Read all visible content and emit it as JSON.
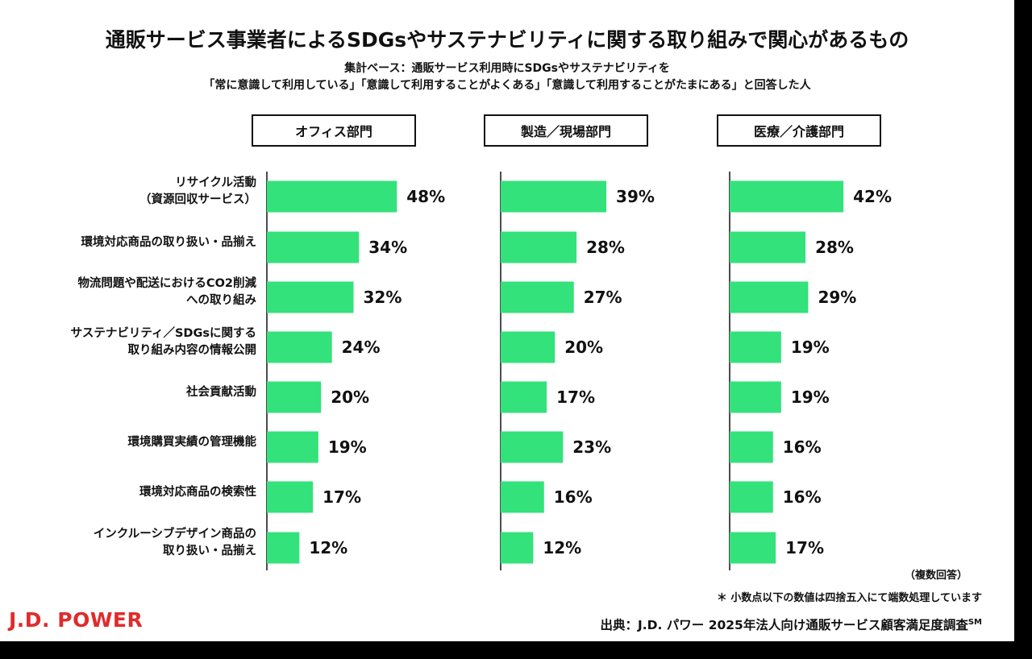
{
  "title": "通販サービス事業者によるSDGsやサステナビリティに関する取り組みで関心があるもの",
  "subtitle_line1": "集計ベース：通販サービス利用時にSDGsやサステナビリティを",
  "subtitle_line2": "「常に意識して利用している」「意識して利用することがよくある」「意識して利用することがたまにある」と回答した人",
  "note_multiple": "（複数回答）",
  "note_rounding": "＊ 小数点以下の数値は四捨五入にて端数処理しています",
  "source": "出典：J.D. パワー 2025年法人向け通販サービス顧客満足度調査",
  "source_mark": "SM",
  "logo_text": "J.D. POWER",
  "colors": {
    "bar": "#33e27a",
    "logo": "#e02b2b",
    "axis": "#111111"
  },
  "chart_data": {
    "type": "bar",
    "orientation": "horizontal",
    "unit": "%",
    "categories": [
      [
        "リサイクル活動",
        "（資源回収サービス）"
      ],
      [
        "環境対応商品の取り扱い・品揃え"
      ],
      [
        "物流問題や配送におけるCO2削減",
        "への取り組み"
      ],
      [
        "サステナビリティ／SDGsに関する",
        "取り組み内容の情報公開"
      ],
      [
        "社会貢献活動"
      ],
      [
        "環境購買実績の管理機能"
      ],
      [
        "環境対応商品の検索性"
      ],
      [
        "インクルーシブデザイン商品の",
        "取り扱い・品揃え"
      ]
    ],
    "series": [
      {
        "name": "オフィス部門",
        "values": [
          48,
          34,
          32,
          24,
          20,
          19,
          17,
          12
        ]
      },
      {
        "name": "製造／現場部門",
        "values": [
          39,
          28,
          27,
          20,
          17,
          23,
          16,
          12
        ]
      },
      {
        "name": "医療／介護部門",
        "values": [
          42,
          28,
          29,
          19,
          19,
          16,
          16,
          17
        ]
      }
    ]
  }
}
